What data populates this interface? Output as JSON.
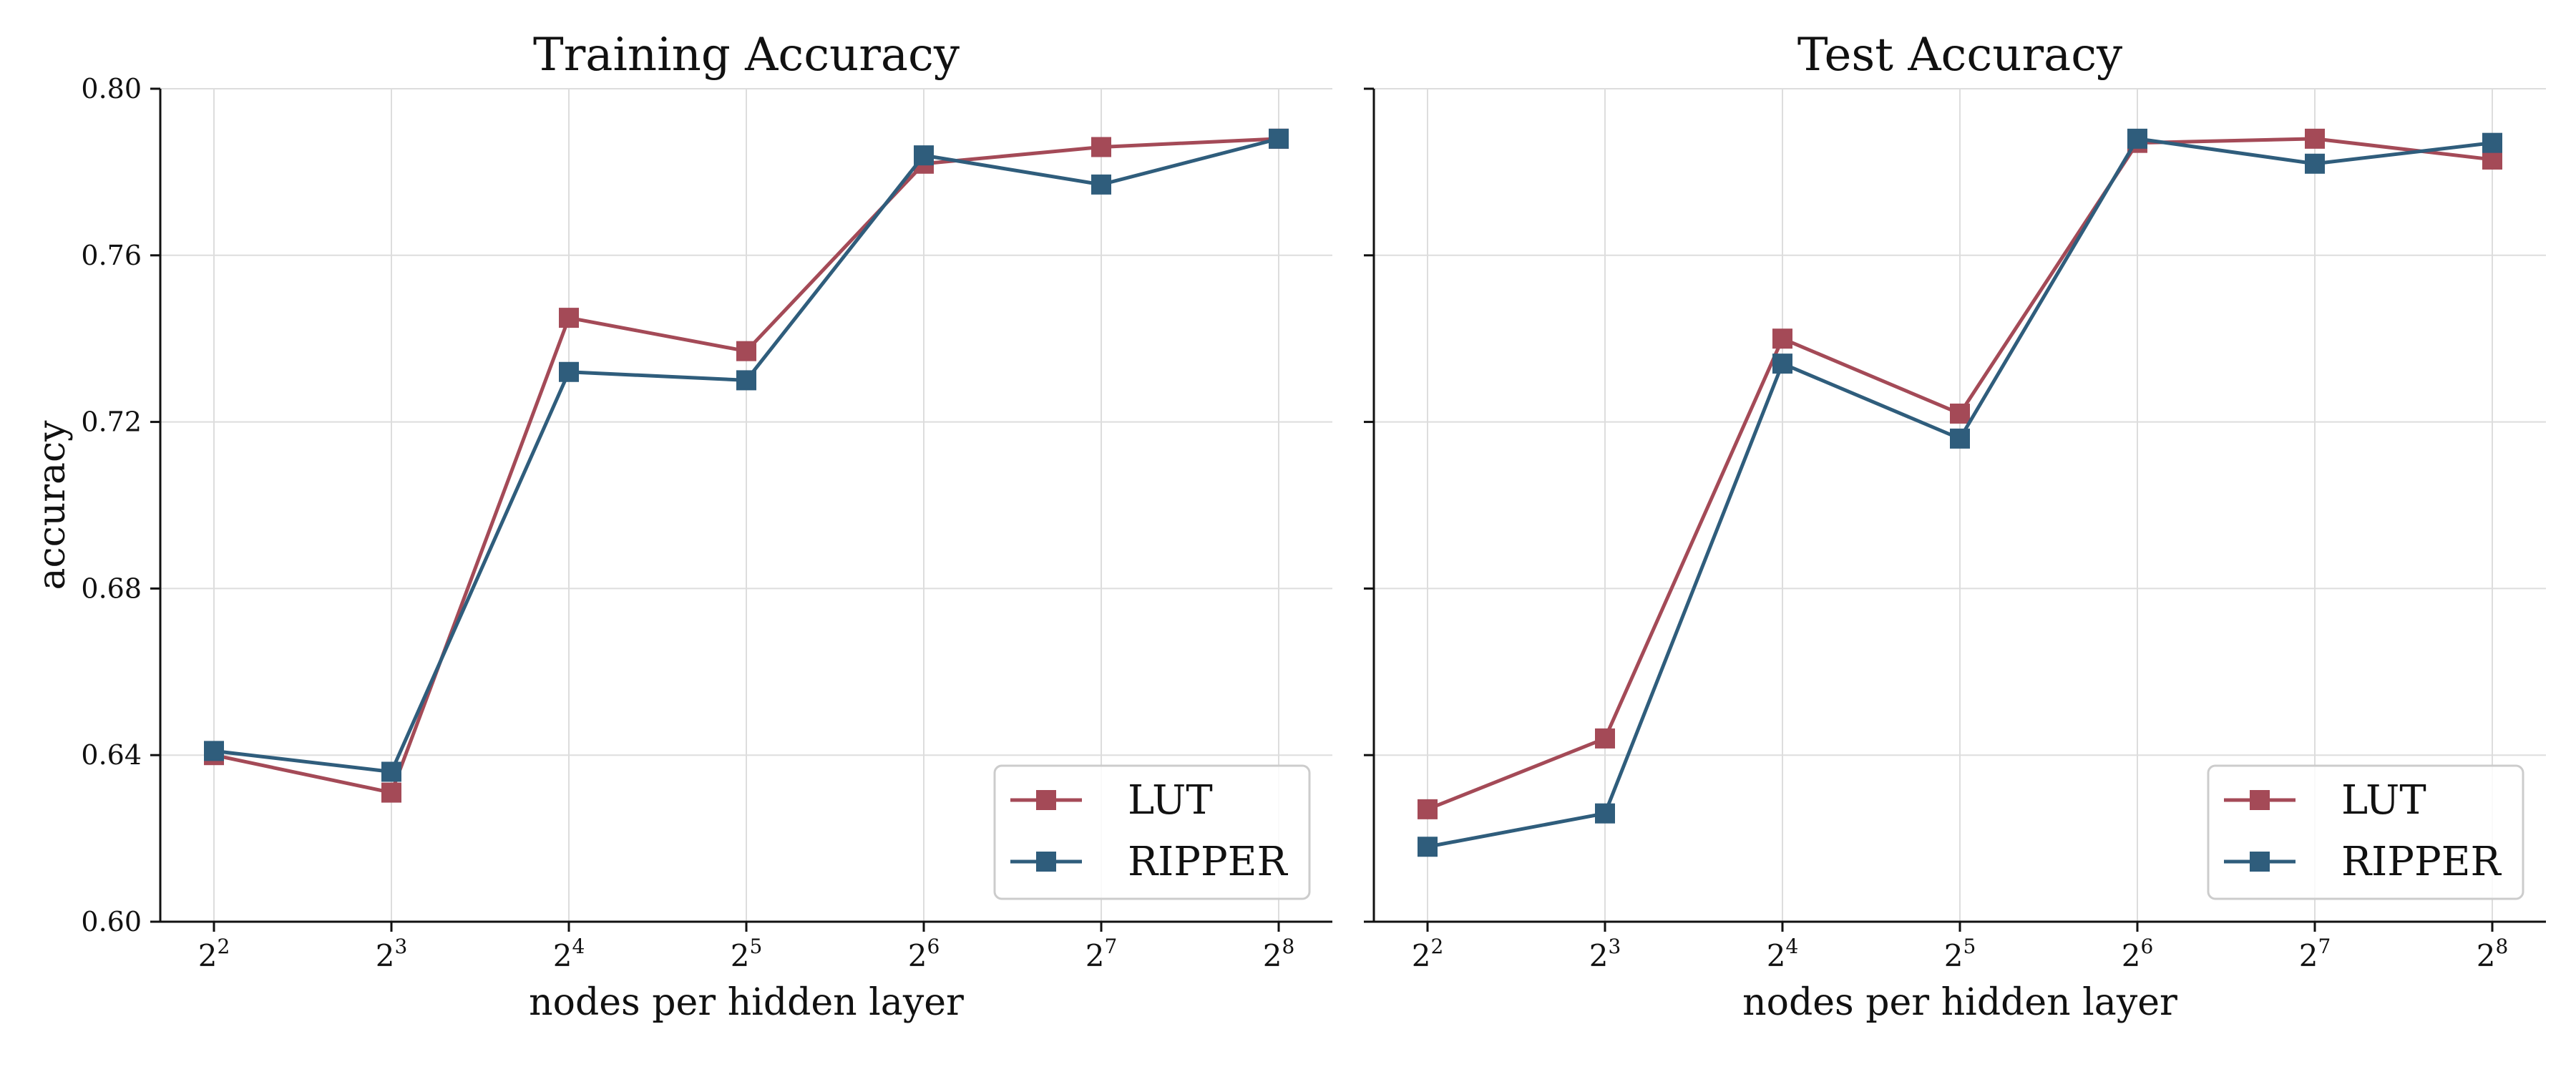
{
  "chart_data": [
    {
      "type": "line",
      "title": "Training Accuracy",
      "xlabel": "nodes per hidden layer",
      "ylabel": "accuracy",
      "x_scale": "log2",
      "categories": [
        "2^2",
        "2^3",
        "2^4",
        "2^5",
        "2^6",
        "2^7",
        "2^8"
      ],
      "tick_base": "2",
      "tick_exponents": [
        "2",
        "3",
        "4",
        "5",
        "6",
        "7",
        "8"
      ],
      "ylim": [
        0.6,
        0.8
      ],
      "yticks": [
        "0.60",
        "0.64",
        "0.68",
        "0.72",
        "0.76",
        "0.80"
      ],
      "grid": true,
      "legend_position": "lower-right",
      "series": [
        {
          "name": "LUT",
          "color": "#a44a57",
          "marker": "square",
          "values": [
            0.64,
            0.631,
            0.745,
            0.737,
            0.782,
            0.786,
            0.788
          ]
        },
        {
          "name": "RIPPER",
          "color": "#2f5d7c",
          "marker": "square",
          "values": [
            0.641,
            0.636,
            0.732,
            0.73,
            0.784,
            0.777,
            0.788
          ]
        }
      ]
    },
    {
      "type": "line",
      "title": "Test Accuracy",
      "xlabel": "nodes per hidden layer",
      "ylabel": "",
      "x_scale": "log2",
      "categories": [
        "2^2",
        "2^3",
        "2^4",
        "2^5",
        "2^6",
        "2^7",
        "2^8"
      ],
      "tick_base": "2",
      "tick_exponents": [
        "2",
        "3",
        "4",
        "5",
        "6",
        "7",
        "8"
      ],
      "ylim": [
        0.6,
        0.8
      ],
      "yticks": [],
      "grid": true,
      "legend_position": "lower-right",
      "series": [
        {
          "name": "LUT",
          "color": "#a44a57",
          "marker": "square",
          "values": [
            0.627,
            0.644,
            0.74,
            0.722,
            0.787,
            0.788,
            0.783
          ]
        },
        {
          "name": "RIPPER",
          "color": "#2f5d7c",
          "marker": "square",
          "values": [
            0.618,
            0.626,
            0.734,
            0.716,
            0.788,
            0.782,
            0.787
          ]
        }
      ]
    }
  ]
}
